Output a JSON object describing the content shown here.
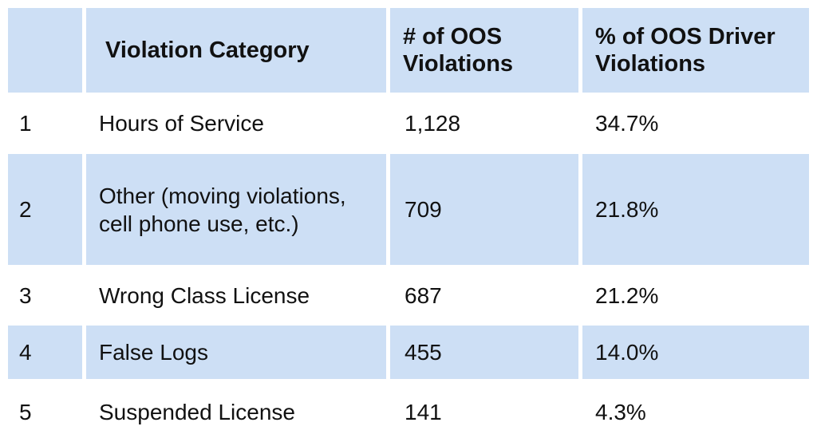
{
  "chart_data": {
    "type": "table",
    "columns": [
      "",
      "Violation Category",
      "# of OOS Violations",
      "% of OOS Driver Violations"
    ],
    "rows": [
      {
        "rank": "1",
        "category": "Hours of Service",
        "count": "1,128",
        "percent": "34.7%"
      },
      {
        "rank": "2",
        "category": "Other (moving violations, cell phone use, etc.)",
        "count": "709",
        "percent": "21.8%"
      },
      {
        "rank": "3",
        "category": "Wrong Class License",
        "count": "687",
        "percent": "21.2%"
      },
      {
        "rank": "4",
        "category": "False Logs",
        "count": "455",
        "percent": "14.0%"
      },
      {
        "rank": "5",
        "category": "Suspended License",
        "count": "141",
        "percent": "4.3%"
      }
    ],
    "colors": {
      "shaded_row": "#cddff5",
      "plain_row": "#ffffff",
      "text": "#111111"
    }
  }
}
